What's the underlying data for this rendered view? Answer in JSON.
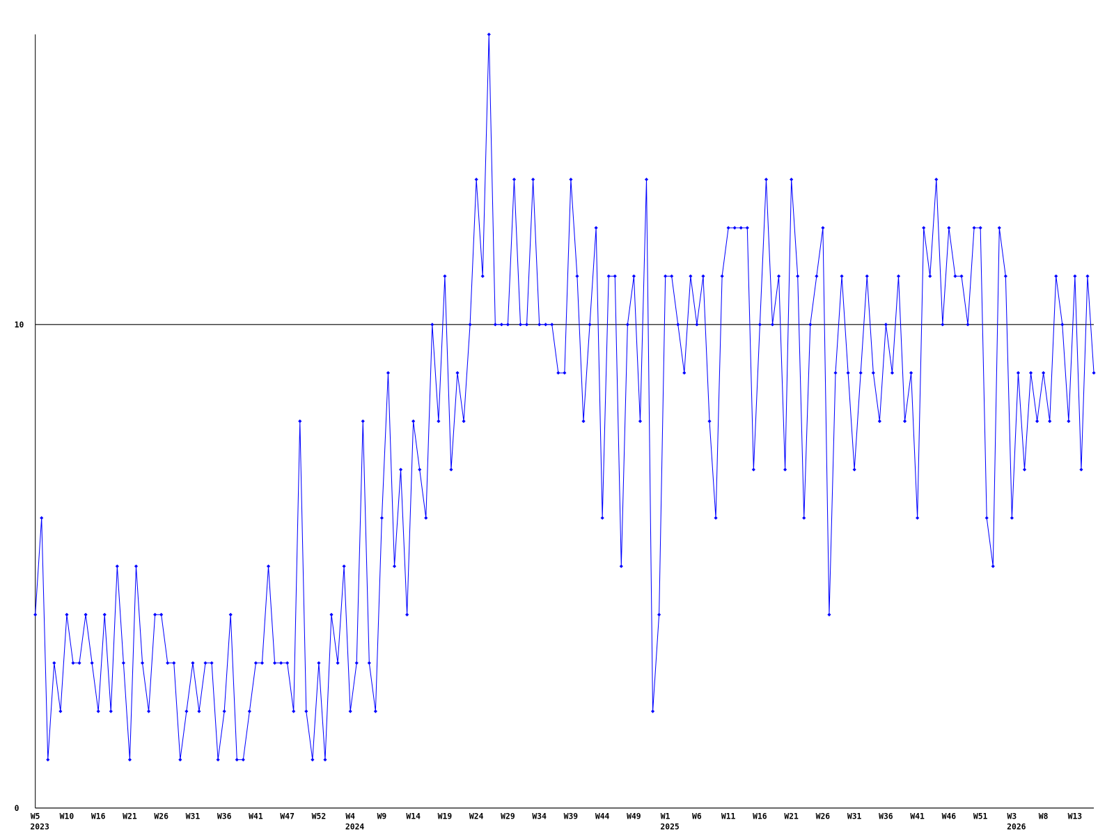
{
  "chart_data": {
    "type": "line",
    "categories": [
      [
        "W5",
        "2023"
      ],
      null,
      null,
      null,
      null,
      "W10",
      null,
      null,
      null,
      null,
      "W16",
      null,
      null,
      null,
      null,
      "W21",
      null,
      null,
      null,
      null,
      "W26",
      null,
      null,
      null,
      null,
      "W31",
      null,
      null,
      null,
      null,
      "W36",
      null,
      null,
      null,
      null,
      "W41",
      null,
      null,
      null,
      null,
      "W47",
      null,
      null,
      null,
      null,
      "W52",
      null,
      null,
      null,
      null,
      [
        "W4",
        "2024"
      ],
      null,
      null,
      null,
      null,
      "W9",
      null,
      null,
      null,
      null,
      "W14",
      null,
      null,
      null,
      null,
      "W19",
      null,
      null,
      null,
      null,
      "W24",
      null,
      null,
      null,
      null,
      "W29",
      null,
      null,
      null,
      null,
      "W34",
      null,
      null,
      null,
      null,
      "W39",
      null,
      null,
      null,
      null,
      "W44",
      null,
      null,
      null,
      null,
      "W49",
      null,
      null,
      null,
      null,
      [
        "W1",
        "2025"
      ],
      null,
      null,
      null,
      null,
      "W6",
      null,
      null,
      null,
      null,
      "W11",
      null,
      null,
      null,
      null,
      "W16",
      null,
      null,
      null,
      null,
      "W21",
      null,
      null,
      null,
      null,
      "W26",
      null,
      null,
      null,
      null,
      "W31",
      null,
      null,
      null,
      null,
      "W36",
      null,
      null,
      null,
      null,
      "W41",
      null,
      null,
      null,
      null,
      "W46",
      null,
      null,
      null,
      null,
      "W51",
      null,
      null,
      null,
      null,
      [
        "W3",
        "2026"
      ],
      null,
      null,
      null,
      null,
      "W8",
      null,
      null,
      null,
      null,
      "W13",
      null,
      null,
      null
    ],
    "series": [
      {
        "color": "#0000ff",
        "values": [
          4,
          6,
          1,
          3,
          2,
          4,
          3,
          3,
          4,
          3,
          2,
          4,
          2,
          5,
          3,
          1,
          5,
          3,
          2,
          4,
          4,
          3,
          3,
          1,
          2,
          3,
          2,
          3,
          3,
          1,
          2,
          4,
          1,
          1,
          2,
          3,
          3,
          5,
          3,
          3,
          3,
          2,
          8,
          2,
          1,
          3,
          1,
          4,
          3,
          5,
          2,
          3,
          8,
          3,
          2,
          6,
          9,
          5,
          7,
          4,
          8,
          7,
          6,
          10,
          8,
          11,
          7,
          9,
          8,
          10,
          13,
          11,
          16,
          10,
          10,
          10,
          13,
          10,
          10,
          13,
          10,
          10,
          10,
          9,
          9,
          13,
          11,
          8,
          10,
          12,
          6,
          11,
          11,
          5,
          10,
          11,
          8,
          13,
          2,
          4,
          11,
          11,
          10,
          9,
          11,
          10,
          11,
          8,
          6,
          11,
          12,
          12,
          12,
          12,
          7,
          10,
          13,
          10,
          11,
          7,
          13,
          11,
          6,
          10,
          11,
          12,
          4,
          9,
          11,
          9,
          7,
          9,
          11,
          9,
          8,
          10,
          9,
          11,
          8,
          9,
          6,
          12,
          11,
          13,
          10,
          12,
          11,
          11,
          10,
          12,
          12,
          6,
          5,
          12,
          11,
          6,
          9,
          7,
          9,
          8,
          9,
          8,
          11,
          10,
          8,
          11,
          7,
          11,
          9
        ]
      }
    ],
    "ylim": [
      0,
      16
    ],
    "yticks": [
      0,
      10
    ],
    "grid": true
  }
}
